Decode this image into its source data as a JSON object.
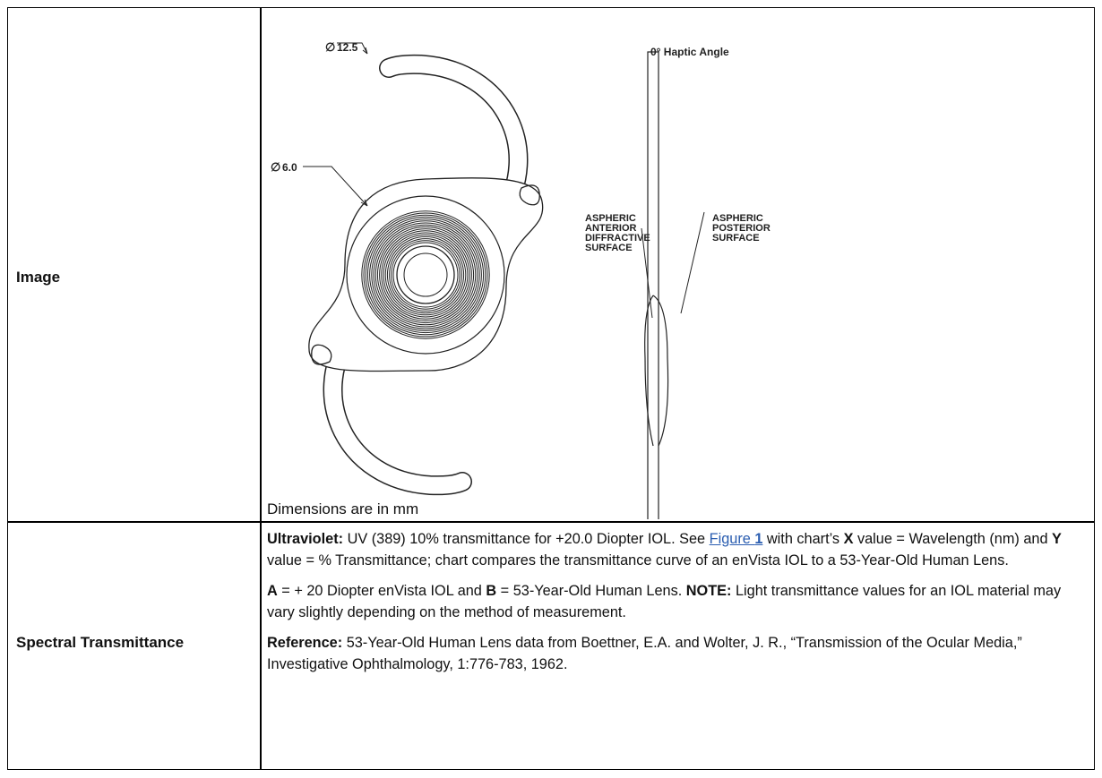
{
  "table": {
    "rows": [
      {
        "label": "Image",
        "figure": {
          "dimension_labels": [
            {
              "symbol": "∅",
              "value": "12.5"
            },
            {
              "symbol": "∅",
              "value": "6.0"
            }
          ],
          "side_title": "0° Haptic Angle",
          "anterior_label": [
            "ASPHERIC",
            "ANTERIOR",
            "DIFFRACTIVE",
            "SURFACE"
          ],
          "posterior_label": [
            "ASPHERIC",
            "POSTERIOR",
            "SURFACE"
          ],
          "caption": "Dimensions are in mm"
        }
      },
      {
        "label": "Spectral Transmittance",
        "paragraphs": [
          [
            {
              "text": "Ultraviolet:",
              "bold": true
            },
            {
              "text": " UV (389) 10% transmittance for +20.0 Diopter IOL. See "
            },
            {
              "text": "Figure ",
              "link": true
            },
            {
              "text": "1",
              "link": true,
              "bold": true
            },
            {
              "text": " with chart’s "
            },
            {
              "text": "X",
              "bold": true
            },
            {
              "text": " value = Wavelength (nm) and "
            },
            {
              "text": "Y",
              "bold": true
            },
            {
              "text": " value = % Transmittance; chart compares the transmittance curve of an enVista IOL to a 53-Year-Old Human Lens."
            }
          ],
          [
            {
              "text": "A",
              "bold": true
            },
            {
              "text": " = + 20 Diopter enVista IOL and "
            },
            {
              "text": "B",
              "bold": true
            },
            {
              "text": " = 53-Year-Old Human Lens. "
            },
            {
              "text": "NOTE:",
              "bold": true
            },
            {
              "text": " Light transmittance values for an IOL material may vary slightly depending on the method of measurement."
            }
          ],
          [
            {
              "text": "Reference:",
              "bold": true
            },
            {
              "text": " 53-Year-Old Human Lens data from Boettner, E.A. and Wolter, J. R., “Transmission of the Ocular Media,” Investigative Ophthalmology, 1:776-783, 1962."
            }
          ]
        ]
      }
    ]
  }
}
